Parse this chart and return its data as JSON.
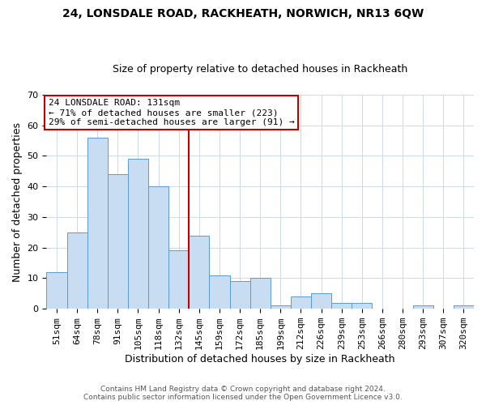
{
  "title": "24, LONSDALE ROAD, RACKHEATH, NORWICH, NR13 6QW",
  "subtitle": "Size of property relative to detached houses in Rackheath",
  "xlabel": "Distribution of detached houses by size in Rackheath",
  "ylabel": "Number of detached properties",
  "bar_labels": [
    "51sqm",
    "64sqm",
    "78sqm",
    "91sqm",
    "105sqm",
    "118sqm",
    "132sqm",
    "145sqm",
    "159sqm",
    "172sqm",
    "185sqm",
    "199sqm",
    "212sqm",
    "226sqm",
    "239sqm",
    "253sqm",
    "266sqm",
    "280sqm",
    "293sqm",
    "307sqm",
    "320sqm"
  ],
  "bar_values": [
    12,
    25,
    56,
    44,
    49,
    40,
    19,
    24,
    11,
    9,
    10,
    1,
    4,
    5,
    2,
    2,
    0,
    0,
    1,
    0,
    1
  ],
  "bar_color": "#c9ddf2",
  "bar_edgecolor": "#5b9bd5",
  "vline_x_index": 6,
  "vline_color": "#c00000",
  "annotation_title": "24 LONSDALE ROAD: 131sqm",
  "annotation_line1": "← 71% of detached houses are smaller (223)",
  "annotation_line2": "29% of semi-detached houses are larger (91) →",
  "annotation_box_edgecolor": "#c00000",
  "annotation_box_facecolor": "white",
  "ylim": [
    0,
    70
  ],
  "yticks": [
    0,
    10,
    20,
    30,
    40,
    50,
    60,
    70
  ],
  "footer_line1": "Contains HM Land Registry data © Crown copyright and database right 2024.",
  "footer_line2": "Contains public sector information licensed under the Open Government Licence v3.0.",
  "background_color": "white",
  "grid_color": "#ccd9e8",
  "title_fontsize": 10,
  "subtitle_fontsize": 9,
  "tick_fontsize": 8,
  "ylabel_fontsize": 9,
  "xlabel_fontsize": 9
}
